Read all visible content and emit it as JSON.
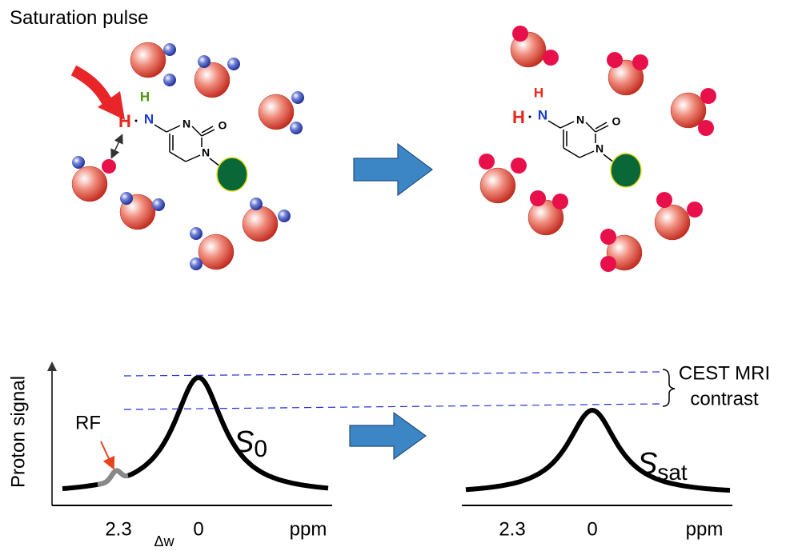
{
  "top": {
    "title": "Saturation pulse",
    "left_molecule": {
      "amine_h_top": "H",
      "amine_n": "N",
      "amine_h_left": "H",
      "ring_n3": "N",
      "ring_o": "O",
      "ring_n1": "N"
    },
    "right_molecule": {
      "amine_h_top": "H",
      "amine_n": "N",
      "amine_h_left": "H",
      "ring_n3": "N",
      "ring_o": "O",
      "ring_n1": "N"
    }
  },
  "bottom": {
    "y_label": "Proton signal",
    "rf_label": "RF",
    "left_axis": {
      "ticks": [
        2.3,
        0
      ],
      "unit": "ppm",
      "delta_label": "Δw"
    },
    "s0": {
      "base": "S",
      "sub": "0"
    },
    "right_axis": {
      "ticks": [
        2.3,
        0
      ],
      "unit": "ppm"
    },
    "ssat": {
      "base": "S",
      "sub": "sat"
    },
    "contrast_label": [
      "CEST MRI",
      "contrast"
    ]
  }
}
